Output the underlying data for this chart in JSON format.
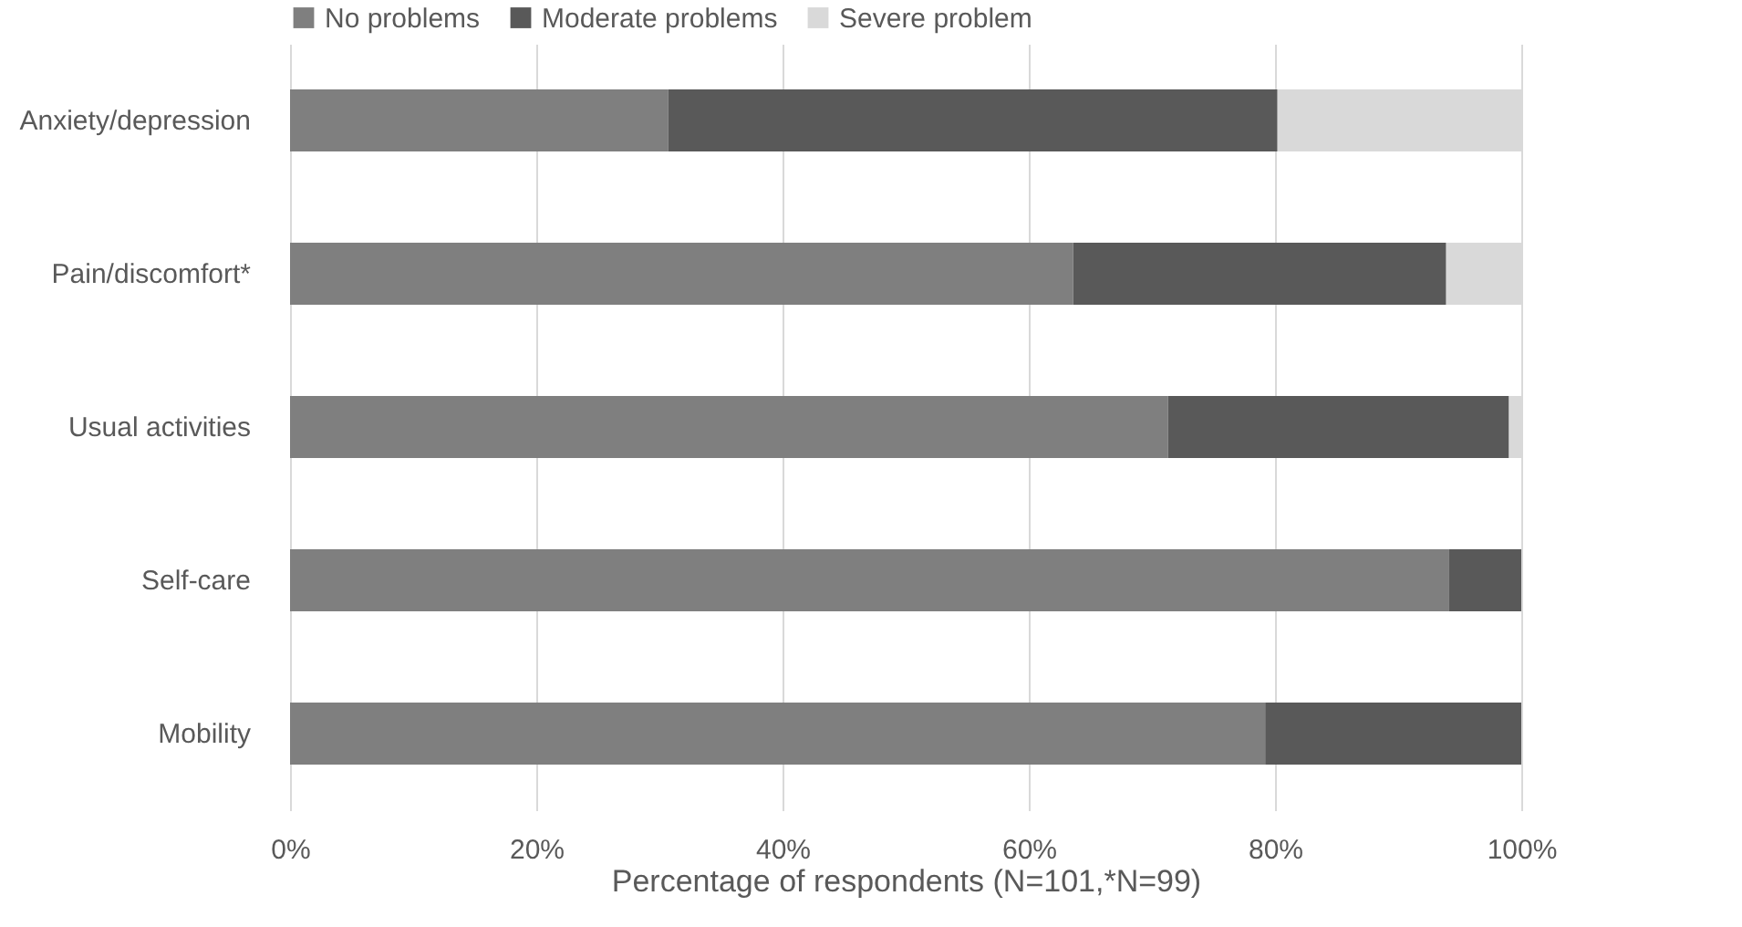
{
  "chart_data": {
    "type": "bar",
    "orientation": "horizontal",
    "stacked": true,
    "categories": [
      "Anxiety/depression",
      "Pain/discomfort*",
      "Usual activities",
      "Self-care",
      "Mobility"
    ],
    "series": [
      {
        "name": "No problems",
        "color": "#7f7f7f",
        "values": [
          30.7,
          63.6,
          71.3,
          94.1,
          79.2
        ]
      },
      {
        "name": "Moderate problems",
        "color": "#595959",
        "values": [
          49.5,
          30.3,
          27.7,
          5.9,
          20.8
        ]
      },
      {
        "name": "Severe problem",
        "color": "#d9d9d9",
        "values": [
          19.8,
          6.1,
          1.0,
          null,
          null
        ]
      }
    ],
    "xlim": [
      0,
      100
    ],
    "xticks": [
      {
        "value": 0,
        "label": "0%"
      },
      {
        "value": 20,
        "label": "20%"
      },
      {
        "value": 40,
        "label": "40%"
      },
      {
        "value": 60,
        "label": "60%"
      },
      {
        "value": 80,
        "label": "80%"
      },
      {
        "value": 100,
        "label": "100%"
      }
    ],
    "xlabel": "Percentage of respondents (N=101,*N=99)",
    "grid": "x",
    "legend": "top"
  }
}
